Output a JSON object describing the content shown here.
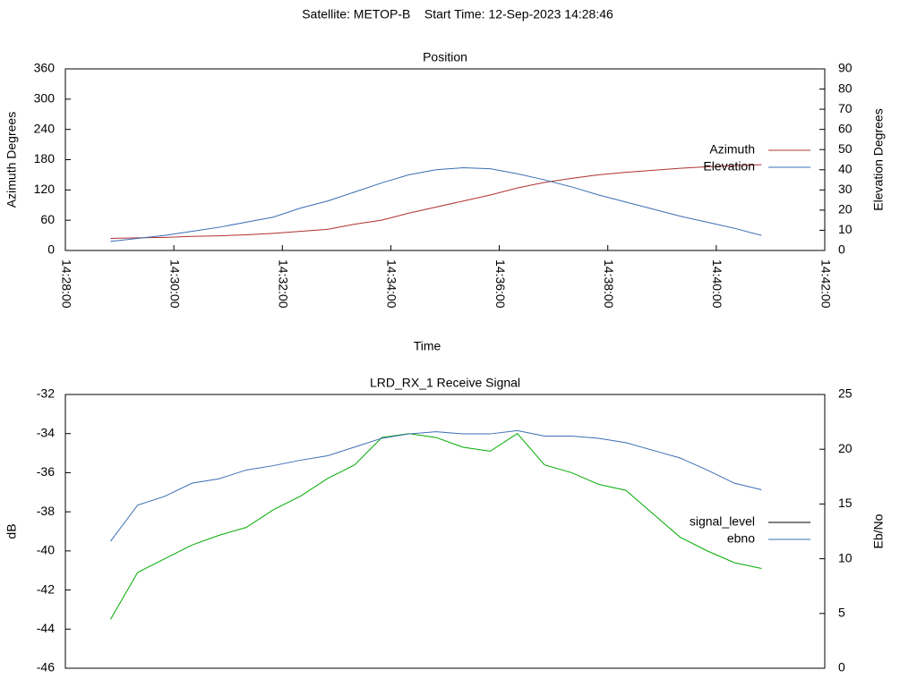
{
  "title": "Satellite: METOP-B    Start Time: 12-Sep-2023 14:28:46",
  "chart_data": [
    {
      "type": "line",
      "title": "Position",
      "xlabel": "Time",
      "ylabel": "Azimuth Degrees",
      "y2label": "Elevation Degrees",
      "xlim": [
        "14:28:00",
        "14:42:00"
      ],
      "xticks": [
        "14:28:00",
        "14:30:00",
        "14:32:00",
        "14:34:00",
        "14:36:00",
        "14:38:00",
        "14:40:00",
        "14:42:00"
      ],
      "ylim": [
        0,
        360
      ],
      "yticks": [
        0,
        60,
        120,
        180,
        240,
        300,
        360
      ],
      "y2lim": [
        0,
        90
      ],
      "y2ticks": [
        0,
        10,
        20,
        30,
        40,
        50,
        60,
        70,
        80,
        90
      ],
      "legend": "right",
      "x": [
        "14:28:50",
        "14:29:20",
        "14:29:50",
        "14:30:20",
        "14:30:50",
        "14:31:20",
        "14:31:50",
        "14:32:20",
        "14:32:50",
        "14:33:20",
        "14:33:50",
        "14:34:20",
        "14:34:50",
        "14:35:20",
        "14:35:50",
        "14:36:20",
        "14:36:50",
        "14:37:20",
        "14:37:50",
        "14:38:20",
        "14:38:50",
        "14:39:20",
        "14:39:50",
        "14:40:20",
        "14:40:50"
      ],
      "series": [
        {
          "name": "Azimuth",
          "color": "#b03030",
          "values": [
            24,
            25,
            26,
            28,
            29,
            31,
            34,
            38,
            42,
            52,
            60,
            74,
            86,
            98,
            110,
            124,
            135,
            143,
            150,
            155,
            159,
            163,
            166,
            168,
            170
          ]
        },
        {
          "name": "Elevation",
          "color": "#3a6db5",
          "axis": "y2",
          "values": [
            4.5,
            6,
            7.5,
            9.5,
            11.5,
            14,
            16.5,
            21,
            24.5,
            29,
            33.5,
            37.5,
            40,
            41,
            40.5,
            38,
            35,
            31.5,
            27.5,
            24,
            20.5,
            17,
            14,
            11,
            7.5
          ]
        }
      ]
    },
    {
      "type": "line",
      "title": "LRD_RX_1 Receive Signal",
      "ylabel": "dB",
      "y2label": "Eb/No",
      "xlim": [
        "14:28:00",
        "14:42:00"
      ],
      "ylim": [
        -46,
        -32
      ],
      "yticks": [
        -46,
        -44,
        -42,
        -40,
        -38,
        -36,
        -34,
        -32
      ],
      "y2lim": [
        0,
        25
      ],
      "y2ticks": [
        0,
        5,
        10,
        15,
        20,
        25
      ],
      "legend": "right",
      "x": [
        "14:28:50",
        "14:29:20",
        "14:29:50",
        "14:30:20",
        "14:30:50",
        "14:31:20",
        "14:31:50",
        "14:32:20",
        "14:32:50",
        "14:33:20",
        "14:33:50",
        "14:34:20",
        "14:34:50",
        "14:35:20",
        "14:35:50",
        "14:36:20",
        "14:36:50",
        "14:37:20",
        "14:37:50",
        "14:38:20",
        "14:38:50",
        "14:39:20",
        "14:39:50",
        "14:40:20",
        "14:40:50"
      ],
      "series": [
        {
          "name": "signal_level",
          "color": "#00aa00",
          "legend_color": "#000000",
          "values": [
            -43.5,
            -41.1,
            -40.4,
            -39.7,
            -39.2,
            -38.8,
            -37.9,
            -37.2,
            -36.3,
            -35.6,
            -34.2,
            -34.0,
            -34.2,
            -34.7,
            -34.9,
            -34.0,
            -35.6,
            -36.0,
            -36.6,
            -36.9,
            -38.1,
            -39.3,
            -40.0,
            -40.6,
            -40.9
          ]
        },
        {
          "name": "ebno",
          "color": "#3a6db5",
          "axis": "y2",
          "values": [
            11.6,
            14.9,
            15.7,
            16.9,
            17.3,
            18.1,
            18.5,
            19.0,
            19.4,
            20.2,
            21.0,
            21.4,
            21.6,
            21.4,
            21.4,
            21.7,
            21.2,
            21.2,
            21.0,
            20.6,
            19.9,
            19.2,
            18.1,
            16.9,
            16.3
          ]
        }
      ]
    }
  ]
}
